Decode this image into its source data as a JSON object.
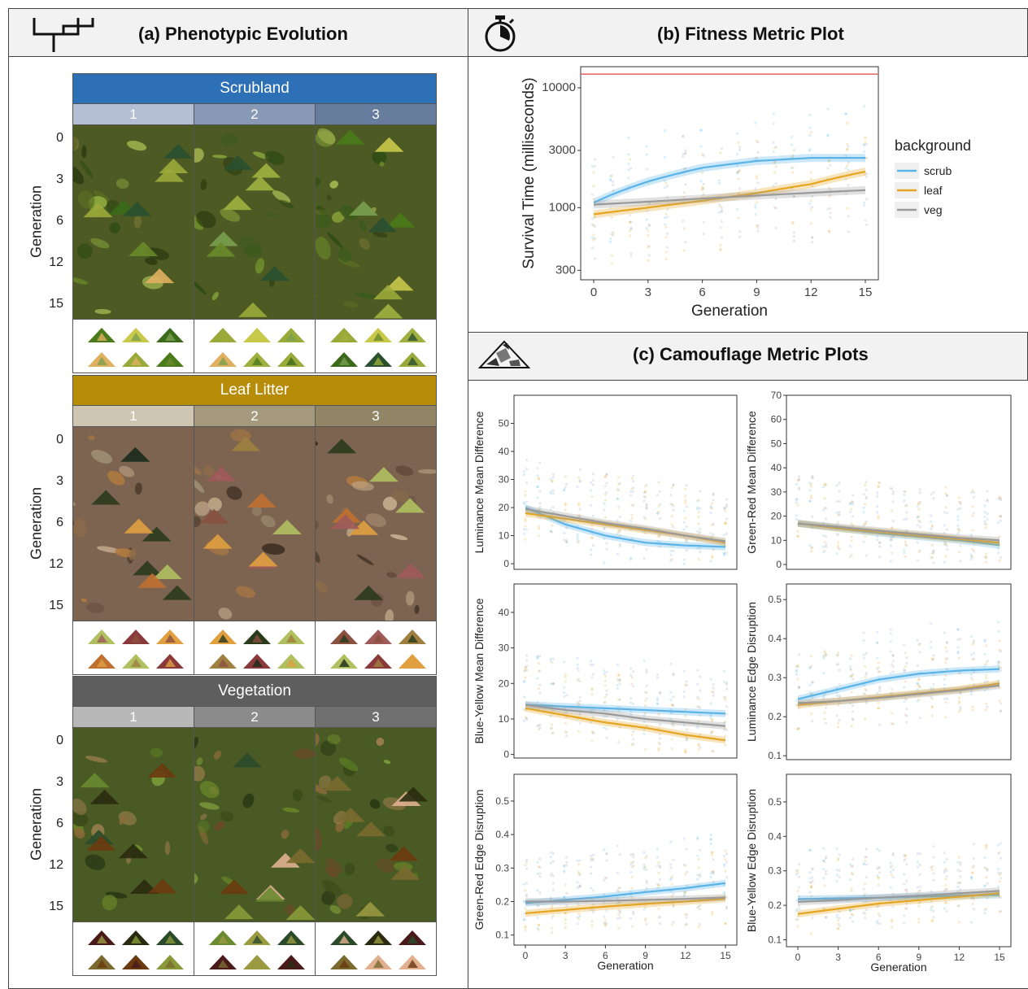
{
  "panel_a": {
    "title": "(a) Phenotypic Evolution",
    "icon": "phylogeny-tree-icon",
    "generation_label": "Generation",
    "generation_ticks": [
      "0",
      "3",
      "6",
      "12",
      "15"
    ],
    "backgrounds": [
      {
        "name": "Scrubland",
        "color": "#2e70b5",
        "rep_colors": [
          "#b4bfd3",
          "#8799b5",
          "#667d9d"
        ],
        "texture": "scrub",
        "replicates": [
          "1",
          "2",
          "3"
        ]
      },
      {
        "name": "Leaf Litter",
        "color": "#b78c08",
        "rep_colors": [
          "#cec5b3",
          "#a69a7e",
          "#928565"
        ],
        "texture": "leaf",
        "replicates": [
          "1",
          "2",
          "3"
        ]
      },
      {
        "name": "Vegetation",
        "color": "#5e5e5e",
        "rep_colors": [
          "#b8b8b8",
          "#8b8b8b",
          "#707070"
        ],
        "texture": "veg",
        "replicates": [
          "1",
          "2",
          "3"
        ]
      }
    ]
  },
  "panel_b": {
    "title": "(b) Fitness Metric Plot",
    "icon": "stopwatch-icon",
    "legend_title": "background",
    "legend": [
      {
        "name": "scrub",
        "color": "#5ab4e8"
      },
      {
        "name": "leaf",
        "color": "#e6a521"
      },
      {
        "name": "veg",
        "color": "#9a9a9a"
      }
    ]
  },
  "panel_c": {
    "title": "(c) Camouflage Metric Plots",
    "icon": "camouflage-triangle-icon"
  },
  "chart_data": [
    {
      "type": "line",
      "xlabel": "Generation",
      "ylabel": "Survival Time (milliseconds)",
      "yscale": "log",
      "xlim": [
        0,
        15
      ],
      "ylim": [
        250,
        15000
      ],
      "xticks": [
        0,
        3,
        6,
        9,
        12,
        15
      ],
      "yticks": [
        300,
        1000,
        3000,
        10000
      ],
      "grid": false,
      "x": [
        0,
        3,
        6,
        9,
        12,
        15
      ],
      "reference_line": 13000,
      "series": [
        {
          "name": "scrub",
          "values": [
            1100,
            1650,
            2150,
            2450,
            2600,
            2600
          ]
        },
        {
          "name": "leaf",
          "values": [
            880,
            1000,
            1140,
            1320,
            1570,
            2000
          ]
        },
        {
          "name": "veg",
          "values": [
            1060,
            1120,
            1190,
            1260,
            1330,
            1400
          ]
        }
      ]
    },
    {
      "type": "line",
      "ylabel": "Luminance Mean Difference",
      "xlim": [
        0,
        15
      ],
      "ylim": [
        -2,
        60
      ],
      "yticks": [
        0,
        10,
        20,
        30,
        40,
        50
      ],
      "x": [
        0,
        3,
        6,
        9,
        12,
        15
      ],
      "series": [
        {
          "name": "scrub",
          "values": [
            20,
            14,
            10,
            7.5,
            6.5,
            6
          ]
        },
        {
          "name": "leaf",
          "values": [
            18,
            16,
            14,
            12,
            10,
            7.5
          ]
        },
        {
          "name": "veg",
          "values": [
            19.5,
            17,
            14.5,
            12.5,
            10,
            8
          ]
        }
      ]
    },
    {
      "type": "line",
      "ylabel": "Green-Red Mean Difference",
      "xlim": [
        0,
        15
      ],
      "ylim": [
        -2,
        70
      ],
      "yticks": [
        0,
        10,
        20,
        30,
        40,
        50,
        60,
        70
      ],
      "x": [
        0,
        3,
        6,
        9,
        12,
        15
      ],
      "series": [
        {
          "name": "scrub",
          "values": [
            17,
            15,
            13,
            11.5,
            10,
            8
          ]
        },
        {
          "name": "leaf",
          "values": [
            17,
            15,
            13.5,
            12,
            10.5,
            9
          ]
        },
        {
          "name": "veg",
          "values": [
            17,
            15.5,
            14,
            12.5,
            11,
            10
          ]
        }
      ]
    },
    {
      "type": "line",
      "ylabel": "Blue-Yellow Mean Difference",
      "xlim": [
        0,
        15
      ],
      "ylim": [
        -1,
        48
      ],
      "yticks": [
        0,
        10,
        20,
        30,
        40
      ],
      "x": [
        0,
        3,
        6,
        9,
        12,
        15
      ],
      "series": [
        {
          "name": "scrub",
          "values": [
            14,
            13.5,
            13,
            12.5,
            12,
            11.5
          ]
        },
        {
          "name": "leaf",
          "values": [
            13,
            11,
            9,
            7.5,
            5.5,
            4
          ]
        },
        {
          "name": "veg",
          "values": [
            14,
            12.5,
            11.5,
            10,
            9,
            8
          ]
        }
      ]
    },
    {
      "type": "line",
      "ylabel": "Luminance Edge Disruption",
      "xlim": [
        0,
        15
      ],
      "ylim": [
        0.09,
        0.54
      ],
      "yticks": [
        0.1,
        0.2,
        0.3,
        0.4,
        0.5
      ],
      "x": [
        0,
        3,
        6,
        9,
        12,
        15
      ],
      "series": [
        {
          "name": "scrub",
          "values": [
            0.245,
            0.27,
            0.295,
            0.31,
            0.318,
            0.322
          ]
        },
        {
          "name": "leaf",
          "values": [
            0.23,
            0.24,
            0.25,
            0.26,
            0.27,
            0.285
          ]
        },
        {
          "name": "veg",
          "values": [
            0.235,
            0.24,
            0.248,
            0.258,
            0.268,
            0.28
          ]
        }
      ]
    },
    {
      "type": "line",
      "ylabel": "Green-Red Edge Disruption",
      "xlabel": "Generation",
      "xlim": [
        0,
        15
      ],
      "xticks": [
        0,
        3,
        6,
        9,
        12,
        15
      ],
      "ylim": [
        0.07,
        0.58
      ],
      "yticks": [
        0.1,
        0.2,
        0.3,
        0.4,
        0.5
      ],
      "x": [
        0,
        3,
        6,
        9,
        12,
        15
      ],
      "series": [
        {
          "name": "scrub",
          "values": [
            0.195,
            0.205,
            0.215,
            0.228,
            0.24,
            0.255
          ]
        },
        {
          "name": "leaf",
          "values": [
            0.165,
            0.175,
            0.185,
            0.193,
            0.2,
            0.208
          ]
        },
        {
          "name": "veg",
          "values": [
            0.2,
            0.2,
            0.202,
            0.205,
            0.208,
            0.212
          ]
        }
      ]
    },
    {
      "type": "line",
      "ylabel": "Blue-Yellow Edge Disruption",
      "xlabel": "Generation",
      "xlim": [
        0,
        15
      ],
      "xticks": [
        0,
        3,
        6,
        9,
        12,
        15
      ],
      "ylim": [
        0.08,
        0.58
      ],
      "yticks": [
        0.1,
        0.2,
        0.3,
        0.4,
        0.5
      ],
      "x": [
        0,
        3,
        6,
        9,
        12,
        15
      ],
      "series": [
        {
          "name": "scrub",
          "values": [
            0.218,
            0.22,
            0.222,
            0.225,
            0.228,
            0.23
          ]
        },
        {
          "name": "leaf",
          "values": [
            0.175,
            0.19,
            0.205,
            0.215,
            0.225,
            0.235
          ]
        },
        {
          "name": "veg",
          "values": [
            0.21,
            0.215,
            0.222,
            0.228,
            0.235,
            0.242
          ]
        }
      ]
    }
  ]
}
